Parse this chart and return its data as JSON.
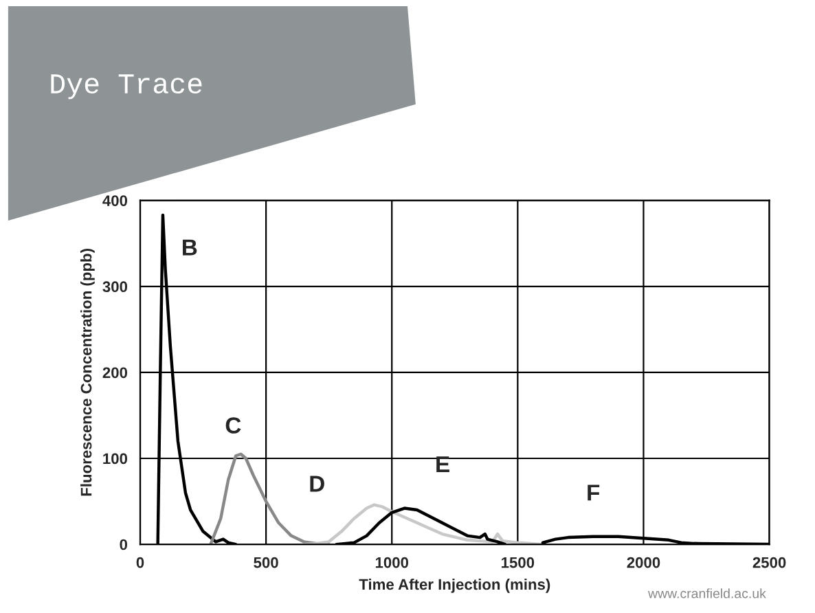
{
  "chart_data": {
    "type": "line",
    "title": "Dye Trace",
    "xlabel": "Time After Injection (mins)",
    "ylabel": "Fluorescence Concentration (ppb)",
    "xlim": [
      0,
      2500
    ],
    "xticks": [
      0,
      500,
      1000,
      1500,
      2000,
      2500
    ],
    "ylim": [
      0,
      400
    ],
    "yticks": [
      0,
      100,
      200,
      300,
      400
    ],
    "grid": true,
    "legend": false,
    "marker": "none",
    "line_style": "solid",
    "series": [
      {
        "color": "#000000",
        "x": [
          70,
          80,
          90,
          100,
          120,
          150,
          180,
          200,
          250,
          300,
          330,
          350,
          380
        ],
        "values": [
          0,
          200,
          383,
          320,
          230,
          120,
          60,
          40,
          15,
          3,
          6,
          2,
          0
        ]
      },
      {
        "color": "#888888",
        "x": [
          280,
          320,
          350,
          380,
          400,
          420,
          450,
          500,
          550,
          600,
          650,
          700,
          750
        ],
        "values": [
          0,
          30,
          75,
          103,
          105,
          100,
          80,
          50,
          25,
          10,
          3,
          1,
          0
        ]
      },
      {
        "color": "#c8c8c8",
        "x": [
          650,
          700,
          750,
          800,
          850,
          900,
          930,
          960,
          1000,
          1100,
          1200,
          1300,
          1400,
          1420,
          1440,
          1500,
          1600
        ],
        "values": [
          0,
          1,
          3,
          15,
          30,
          42,
          46,
          44,
          38,
          25,
          12,
          5,
          3,
          12,
          4,
          2,
          0
        ]
      },
      {
        "color": "#000000",
        "x": [
          780,
          850,
          900,
          950,
          1000,
          1050,
          1100,
          1200,
          1300,
          1350,
          1370,
          1380,
          1420,
          1450
        ],
        "values": [
          0,
          2,
          10,
          25,
          37,
          42,
          40,
          25,
          10,
          8,
          12,
          6,
          3,
          0
        ]
      },
      {
        "color": "#000000",
        "x": [
          1600,
          1650,
          1700,
          1800,
          1900,
          2000,
          2100,
          2150,
          2200,
          2500
        ],
        "values": [
          2,
          6,
          8,
          9,
          9,
          7,
          5,
          2,
          1,
          0
        ]
      }
    ],
    "annotations": [
      "B",
      "C",
      "D",
      "E",
      "F",
      "www.cranfield.ac.uk"
    ]
  }
}
